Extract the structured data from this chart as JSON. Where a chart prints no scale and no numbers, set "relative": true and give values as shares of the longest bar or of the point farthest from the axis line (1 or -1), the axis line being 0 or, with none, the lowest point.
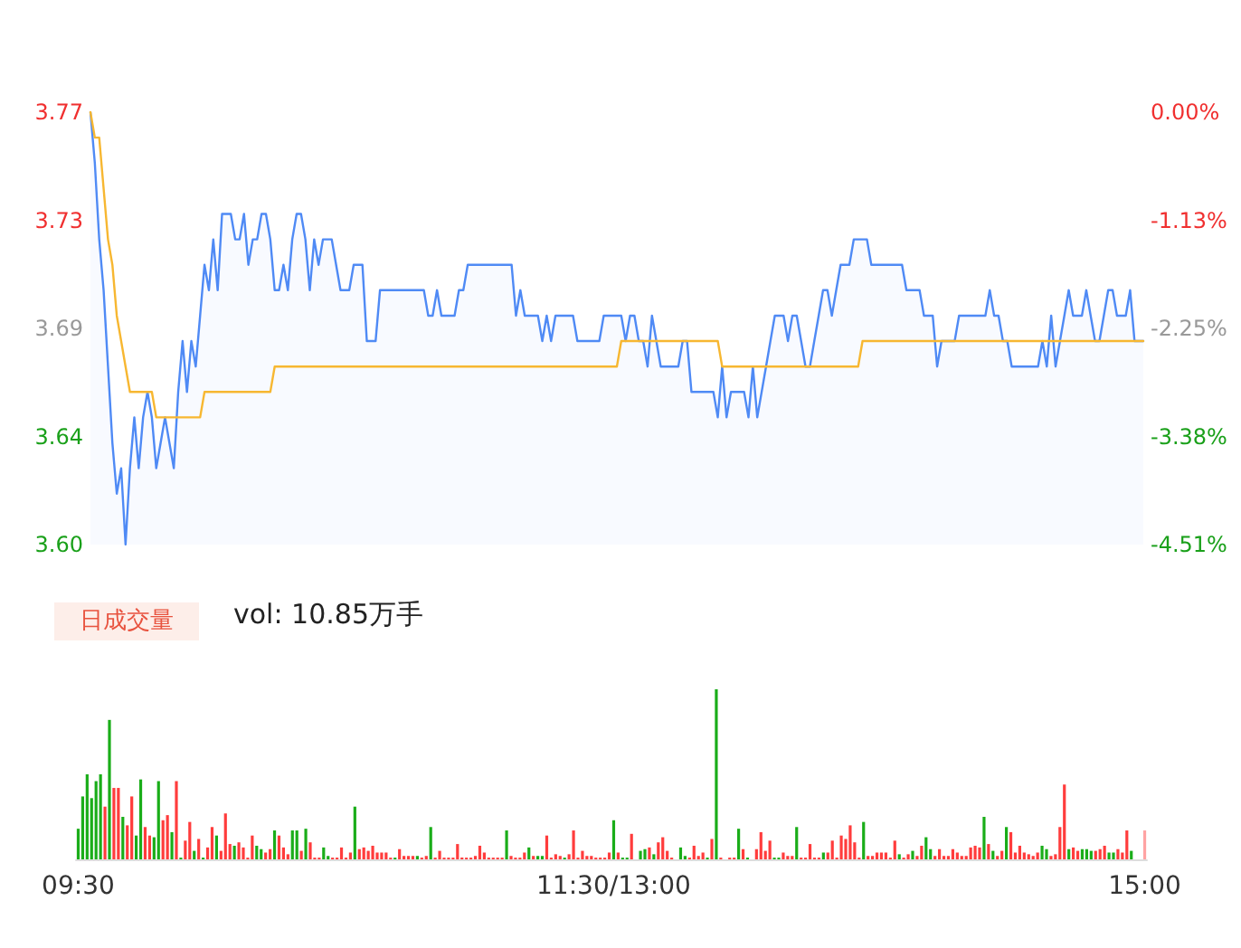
{
  "chart_data": [
    {
      "type": "line",
      "categories": [
        null,
        null,
        null,
        null,
        null,
        null,
        null,
        null,
        null,
        null,
        null,
        null,
        null,
        null,
        null,
        null,
        null,
        null,
        null,
        null,
        null,
        null,
        null,
        null,
        null,
        null,
        null,
        null,
        null,
        null,
        null,
        null,
        null,
        null,
        null,
        null,
        null,
        null,
        null,
        null,
        null,
        null,
        null,
        null,
        null,
        null,
        null,
        null,
        null,
        null,
        null,
        null,
        null,
        null,
        null,
        null,
        null,
        null,
        null,
        null,
        null,
        null,
        null,
        null,
        null,
        null,
        null,
        null,
        null,
        null,
        null,
        null,
        null,
        null,
        null,
        null,
        null,
        null,
        null,
        null,
        null,
        null,
        null,
        null,
        null,
        null,
        null,
        null,
        null,
        null,
        null,
        null,
        null,
        null,
        null,
        null,
        null,
        null,
        null,
        null,
        null,
        null,
        null,
        null,
        null,
        null,
        null,
        null,
        null,
        null,
        null,
        null,
        null,
        null,
        null,
        null,
        null,
        null,
        null,
        null,
        null,
        null,
        null,
        null,
        null,
        null,
        null,
        null,
        null,
        null,
        null,
        null,
        null,
        null,
        null,
        null,
        null,
        null,
        null,
        null,
        null,
        null,
        null,
        null,
        null,
        null,
        null,
        null,
        null,
        null,
        null,
        null,
        null,
        null,
        null,
        null,
        null,
        null,
        null,
        null,
        null,
        null,
        null,
        null,
        null,
        null,
        null,
        null,
        null,
        null,
        null,
        null,
        null,
        null,
        null,
        null,
        null,
        null,
        null,
        null,
        null,
        null,
        null,
        null,
        null,
        null,
        null,
        null,
        null,
        null,
        null,
        null,
        null,
        null,
        null,
        null,
        null,
        null,
        null,
        null,
        null,
        null,
        null,
        null,
        null,
        null,
        null,
        null,
        null,
        null,
        null,
        null,
        null,
        null,
        null,
        null,
        null,
        null,
        null,
        null,
        null,
        null,
        null,
        null,
        null,
        null,
        null,
        null,
        null,
        null,
        null,
        null,
        null,
        null,
        null,
        null,
        null,
        null,
        null,
        null,
        null
      ],
      "ylim": [
        3.6,
        3.77
      ],
      "yticks": [
        {
          "value": 3.6,
          "label": "3.60"
        },
        {
          "value": 3.6425,
          "label": "3.64"
        },
        {
          "value": 3.685,
          "label": "3.69"
        },
        {
          "value": 3.7275,
          "label": "3.73"
        },
        3.77
      ],
      "y2lim": [
        -4.51,
        0
      ],
      "y2ticks": [
        {
          "value": -4.51,
          "label": "-4.51%"
        },
        {
          "value": -3.3825,
          "label": "-3.38%"
        },
        {
          "value": -2.255,
          "label": "-2.25%"
        },
        {
          "value": -1.1275,
          "label": "-1.13%"
        },
        {
          "value": 0,
          "label": "0.00%"
        }
      ],
      "tick_labels": "y",
      "marker": "none",
      "line_style": "solid",
      "series": [
        {
          "type": "area",
          "color": "#4f8af5",
          "values": [
            3.77,
            3.75,
            3.72,
            3.7,
            3.67,
            3.64,
            3.62,
            3.63,
            3.6,
            3.63,
            3.65,
            3.63,
            3.65,
            3.66,
            3.65,
            3.63,
            3.64,
            3.65,
            3.64,
            3.63,
            3.66,
            3.68,
            3.66,
            3.68,
            3.67,
            3.69,
            3.71,
            3.7,
            3.72,
            3.7,
            3.73,
            3.73,
            3.73,
            3.72,
            3.72,
            3.73,
            3.71,
            3.72,
            3.72,
            3.73,
            3.73,
            3.72,
            3.7,
            3.7,
            3.71,
            3.7,
            3.72,
            3.73,
            3.73,
            3.72,
            3.7,
            3.72,
            3.71,
            3.72,
            3.72,
            3.72,
            3.71,
            3.7,
            3.7,
            3.7,
            3.71,
            3.71,
            3.71,
            3.68,
            3.68,
            3.68,
            3.7,
            3.7,
            3.7,
            3.7,
            3.7,
            3.7,
            3.7,
            3.7,
            3.7,
            3.7,
            3.7,
            3.69,
            3.69,
            3.7,
            3.69,
            3.69,
            3.69,
            3.69,
            3.7,
            3.7,
            3.71,
            3.71,
            3.71,
            3.71,
            3.71,
            3.71,
            3.71,
            3.71,
            3.71,
            3.71,
            3.71,
            3.69,
            3.7,
            3.69,
            3.69,
            3.69,
            3.69,
            3.68,
            3.69,
            3.68,
            3.69,
            3.69,
            3.69,
            3.69,
            3.69,
            3.68,
            3.68,
            3.68,
            3.68,
            3.68,
            3.68,
            3.69,
            3.69,
            3.69,
            3.69,
            3.69,
            3.68,
            3.69,
            3.69,
            3.68,
            3.68,
            3.67,
            3.69,
            3.68,
            3.67,
            3.67,
            3.67,
            3.67,
            3.67,
            3.68,
            3.68,
            3.66,
            3.66,
            3.66,
            3.66,
            3.66,
            3.66,
            3.65,
            3.67,
            3.65,
            3.66,
            3.66,
            3.66,
            3.66,
            3.65,
            3.67,
            3.65,
            3.66,
            3.67,
            3.68,
            3.69,
            3.69,
            3.69,
            3.68,
            3.69,
            3.69,
            3.68,
            3.67,
            3.67,
            3.68,
            3.69,
            3.7,
            3.7,
            3.69,
            3.7,
            3.71,
            3.71,
            3.71,
            3.72,
            3.72,
            3.72,
            3.72,
            3.71,
            3.71,
            3.71,
            3.71,
            3.71,
            3.71,
            3.71,
            3.71,
            3.7,
            3.7,
            3.7,
            3.7,
            3.69,
            3.69,
            3.69,
            3.67,
            3.68,
            3.68,
            3.68,
            3.68,
            3.69,
            3.69,
            3.69,
            3.69,
            3.69,
            3.69,
            3.69,
            3.7,
            3.69,
            3.69,
            3.68,
            3.68,
            3.67,
            3.67,
            3.67,
            3.67,
            3.67,
            3.67,
            3.67,
            3.68,
            3.67,
            3.69,
            3.67,
            3.68,
            3.69,
            3.7,
            3.69,
            3.69,
            3.69,
            3.7,
            3.69,
            3.68,
            3.68,
            3.69,
            3.7,
            3.7,
            3.69,
            3.69,
            3.69,
            3.7,
            3.68,
            3.68,
            3.68
          ]
        },
        {
          "type": "line",
          "color": "#f7b731",
          "values": [
            3.77,
            3.76,
            3.76,
            3.74,
            3.72,
            3.71,
            3.69,
            3.68,
            3.67,
            3.66,
            3.66,
            3.66,
            3.66,
            3.66,
            3.66,
            3.65,
            3.65,
            3.65,
            3.65,
            3.65,
            3.65,
            3.65,
            3.65,
            3.65,
            3.65,
            3.65,
            3.66,
            3.66,
            3.66,
            3.66,
            3.66,
            3.66,
            3.66,
            3.66,
            3.66,
            3.66,
            3.66,
            3.66,
            3.66,
            3.66,
            3.66,
            3.66,
            3.67,
            3.67,
            3.67,
            3.67,
            3.67,
            3.67,
            3.67,
            3.67,
            3.67,
            3.67,
            3.67,
            3.67,
            3.67,
            3.67,
            3.67,
            3.67,
            3.67,
            3.67,
            3.67,
            3.67,
            3.67,
            3.67,
            3.67,
            3.67,
            3.67,
            3.67,
            3.67,
            3.67,
            3.67,
            3.67,
            3.67,
            3.67,
            3.67,
            3.67,
            3.67,
            3.67,
            3.67,
            3.67,
            3.67,
            3.67,
            3.67,
            3.67,
            3.67,
            3.67,
            3.67,
            3.67,
            3.67,
            3.67,
            3.67,
            3.67,
            3.67,
            3.67,
            3.67,
            3.67,
            3.67,
            3.67,
            3.67,
            3.67,
            3.67,
            3.67,
            3.67,
            3.67,
            3.67,
            3.67,
            3.67,
            3.67,
            3.67,
            3.67,
            3.67,
            3.67,
            3.67,
            3.67,
            3.67,
            3.67,
            3.67,
            3.67,
            3.67,
            3.67,
            3.67,
            3.68,
            3.68,
            3.68,
            3.68,
            3.68,
            3.68,
            3.68,
            3.68,
            3.68,
            3.68,
            3.68,
            3.68,
            3.68,
            3.68,
            3.68,
            3.68,
            3.68,
            3.68,
            3.68,
            3.68,
            3.68,
            3.68,
            3.68,
            3.67,
            3.67,
            3.67,
            3.67,
            3.67,
            3.67,
            3.67,
            3.67,
            3.67,
            3.67,
            3.67,
            3.67,
            3.67,
            3.67,
            3.67,
            3.67,
            3.67,
            3.67,
            3.67,
            3.67,
            3.67,
            3.67,
            3.67,
            3.67,
            3.67,
            3.67,
            3.67,
            3.67,
            3.67,
            3.67,
            3.67,
            3.67,
            3.68,
            3.68,
            3.68,
            3.68,
            3.68,
            3.68,
            3.68,
            3.68,
            3.68,
            3.68,
            3.68,
            3.68,
            3.68,
            3.68,
            3.68,
            3.68,
            3.68,
            3.68,
            3.68,
            3.68,
            3.68,
            3.68,
            3.68,
            3.68,
            3.68,
            3.68,
            3.68,
            3.68,
            3.68,
            3.68,
            3.68,
            3.68,
            3.68,
            3.68,
            3.68,
            3.68,
            3.68,
            3.68,
            3.68,
            3.68,
            3.68,
            3.68,
            3.68,
            3.68,
            3.68,
            3.68,
            3.68,
            3.68,
            3.68,
            3.68,
            3.68,
            3.68,
            3.68,
            3.68,
            3.68,
            3.68,
            3.68,
            3.68,
            3.68,
            3.68,
            3.68,
            3.68,
            3.68,
            3.68,
            3.68
          ]
        }
      ]
    },
    {
      "type": "bar",
      "relative": true,
      "tick_labels": "x",
      "annotations": [
        "日成交量",
        "vol: 10.85万手"
      ],
      "categories": [
        "09:30",
        null,
        null,
        null,
        null,
        null,
        null,
        null,
        null,
        null,
        null,
        null,
        null,
        null,
        null,
        null,
        null,
        null,
        null,
        null,
        null,
        null,
        null,
        null,
        null,
        null,
        null,
        null,
        null,
        null,
        null,
        null,
        null,
        null,
        null,
        null,
        null,
        null,
        null,
        null,
        null,
        null,
        null,
        null,
        null,
        null,
        null,
        null,
        null,
        null,
        null,
        null,
        null,
        null,
        null,
        null,
        null,
        null,
        null,
        null,
        null,
        null,
        null,
        null,
        null,
        null,
        null,
        null,
        null,
        null,
        null,
        null,
        null,
        null,
        null,
        null,
        null,
        null,
        null,
        null,
        null,
        null,
        null,
        null,
        null,
        null,
        null,
        null,
        null,
        null,
        null,
        null,
        null,
        null,
        null,
        null,
        null,
        null,
        null,
        null,
        null,
        null,
        null,
        null,
        null,
        null,
        null,
        null,
        null,
        null,
        null,
        null,
        null,
        null,
        null,
        null,
        null,
        null,
        null,
        null,
        "11:30/13:00",
        null,
        null,
        null,
        null,
        null,
        null,
        null,
        null,
        null,
        null,
        null,
        null,
        null,
        null,
        null,
        null,
        null,
        null,
        null,
        null,
        null,
        null,
        null,
        null,
        null,
        null,
        null,
        null,
        null,
        null,
        null,
        null,
        null,
        null,
        null,
        null,
        null,
        null,
        null,
        null,
        null,
        null,
        null,
        null,
        null,
        null,
        null,
        null,
        null,
        null,
        null,
        null,
        null,
        null,
        null,
        null,
        null,
        null,
        null,
        null,
        null,
        null,
        null,
        null,
        null,
        null,
        null,
        null,
        null,
        null,
        null,
        null,
        null,
        null,
        null,
        null,
        null,
        null,
        null,
        null,
        null,
        null,
        null,
        null,
        null,
        null,
        null,
        null,
        null,
        null,
        null,
        null,
        null,
        null,
        null,
        null,
        null,
        null,
        null,
        null,
        null,
        null,
        null,
        null,
        null,
        null,
        null,
        null,
        null,
        null,
        null,
        null,
        null,
        null,
        null,
        null,
        null,
        null,
        "15:00"
      ],
      "values": [
        0.18,
        0.37,
        0.5,
        0.36,
        0.46,
        0.5,
        0.31,
        0.82,
        0.42,
        0.42,
        0.25,
        0.2,
        0.37,
        0.14,
        0.47,
        0.19,
        0.14,
        0.13,
        0.46,
        0.23,
        0.26,
        0.16,
        0.46,
        0.01,
        0.11,
        0.22,
        0.05,
        0.12,
        0.01,
        0.07,
        0.19,
        0.14,
        0.05,
        0.27,
        0.09,
        0.08,
        0.1,
        0.07,
        0.01,
        0.14,
        0.08,
        0.06,
        0.04,
        0.06,
        0.17,
        0.14,
        0.07,
        0.03,
        0.17,
        0.17,
        0.05,
        0.18,
        0.1,
        0.01,
        0.01,
        0.07,
        0.02,
        0.01,
        0.01,
        0.07,
        0.01,
        0.04,
        0.31,
        0.06,
        0.07,
        0.05,
        0.08,
        0.04,
        0.04,
        0.04,
        0.01,
        0.01,
        0.06,
        0.02,
        0.02,
        0.02,
        0.02,
        0.01,
        0.02,
        0.19,
        0.01,
        0.05,
        0.01,
        0.01,
        0.01,
        0.09,
        0.01,
        0.01,
        0.01,
        0.02,
        0.08,
        0.04,
        0.01,
        0.01,
        0.01,
        0.01,
        0.17,
        0.02,
        0.01,
        0.01,
        0.04,
        0.07,
        0.02,
        0.02,
        0.02,
        0.14,
        0.01,
        0.03,
        0.02,
        0.01,
        0.03,
        0.17,
        0.01,
        0.05,
        0.02,
        0.02,
        0.01,
        0.01,
        0.01,
        0.04,
        0.23,
        0.04,
        0.01,
        0.01,
        0.15,
        0,
        0.05,
        0.06,
        0.07,
        0.03,
        0.1,
        0.13,
        0.05,
        0.01,
        0,
        0.07,
        0.02,
        0.01,
        0.08,
        0.02,
        0.04,
        0.01,
        0.12,
        1,
        0.01,
        0,
        0.01,
        0.01,
        0.18,
        0.06,
        0.01,
        0,
        0.06,
        0.16,
        0.05,
        0.11,
        0.01,
        0.01,
        0.04,
        0.02,
        0.02,
        0.19,
        0.01,
        0.01,
        0.09,
        0.01,
        0.01,
        0.04,
        0.04,
        0.11,
        0.01,
        0.14,
        0.12,
        0.2,
        0.1,
        0.01,
        0.22,
        0.02,
        0.02,
        0.04,
        0.04,
        0.04,
        0.01,
        0.11,
        0.03,
        0.01,
        0.03,
        0.05,
        0.02,
        0.08,
        0.13,
        0.06,
        0.02,
        0.06,
        0.02,
        0.02,
        0.06,
        0.04,
        0.02,
        0.02,
        0.07,
        0.08,
        0.07,
        0.25,
        0.09,
        0.05,
        0.02,
        0.05,
        0.19,
        0.16,
        0.04,
        0.08,
        0.04,
        0.03,
        0.02,
        0.04,
        0.08,
        0.06,
        0.02,
        0.03,
        0.19,
        0.44,
        0.06,
        0.07,
        0.05,
        0.06,
        0.06,
        0.05,
        0.05,
        0.06,
        0.08,
        0.04,
        0.04,
        0.06,
        0.04,
        0.17,
        0.05,
        0,
        0,
        0.17
      ],
      "colors": [
        "#1aad19",
        "#1aad19",
        "#1aad19",
        "#1aad19",
        "#1aad19",
        "#1aad19",
        "#ff3c3c",
        "#1aad19",
        "#ff3c3c",
        "#ff3c3c",
        "#1aad19",
        "#ff3c3c",
        "#ff3c3c",
        "#1aad19",
        "#1aad19",
        "#ff3c3c",
        "#ff3c3c",
        "#1aad19",
        "#1aad19",
        "#ff3c3c",
        "#ff3c3c",
        "#1aad19",
        "#ff3c3c",
        "#1aad19",
        "#ff3c3c",
        "#ff3c3c",
        "#1aad19",
        "#ff3c3c",
        "#1aad19",
        "#ff3c3c",
        "#ff3c3c",
        "#1aad19",
        "#ff3c3c",
        "#ff3c3c",
        "#ff3c3c",
        "#1aad19",
        "#ff3c3c",
        "#ff3c3c",
        "#ff3c3c",
        "#ff3c3c",
        "#1aad19",
        "#1aad19",
        "#ff3c3c",
        "#ff3c3c",
        "#1aad19",
        "#ff3c3c",
        "#ff3c3c",
        "#ff3c3c",
        "#1aad19",
        "#1aad19",
        "#ff3c3c",
        "#1aad19",
        "#ff3c3c",
        "#ff3c3c",
        "#ff3c3c",
        "#1aad19",
        "#1aad19",
        "#ff3c3c",
        "#ff3c3c",
        "#ff3c3c",
        "#ff3c3c",
        "#ff3c3c",
        "#1aad19",
        "#ff3c3c",
        "#ff3c3c",
        "#ff3c3c",
        "#ff3c3c",
        "#ff3c3c",
        "#ff3c3c",
        "#ff3c3c",
        "#ff3c3c",
        "#1aad19",
        "#ff3c3c",
        "#ff3c3c",
        "#ff3c3c",
        "#ff3c3c",
        "#1aad19",
        "#ff3c3c",
        "#ff3c3c",
        "#1aad19",
        "#ff3c3c",
        "#ff3c3c",
        "#ff3c3c",
        "#ff3c3c",
        "#ff3c3c",
        "#ff3c3c",
        "#ff3c3c",
        "#ff3c3c",
        "#ff3c3c",
        "#ff3c3c",
        "#ff3c3c",
        "#ff3c3c",
        "#ff3c3c",
        "#ff3c3c",
        "#ff3c3c",
        "#ff3c3c",
        "#1aad19",
        "#ff3c3c",
        "#ff3c3c",
        "#ff3c3c",
        "#ff3c3c",
        "#1aad19",
        "#ff3c3c",
        "#1aad19",
        "#1aad19",
        "#ff3c3c",
        "#ff3c3c",
        "#ff3c3c",
        "#ff3c3c",
        "#1aad19",
        "#ff3c3c",
        "#ff3c3c",
        "#ff3c3c",
        "#ff3c3c",
        "#ff3c3c",
        "#ff3c3c",
        "#ff3c3c",
        "#ff3c3c",
        "#ff3c3c",
        "#ff3c3c",
        "#1aad19",
        "#ff3c3c",
        "#1aad19",
        "#1aad19",
        "#ff3c3c",
        "#ff3c3c",
        "#1aad19",
        "#1aad19",
        "#ff3c3c",
        "#1aad19",
        "#ff3c3c",
        "#ff3c3c",
        "#ff3c3c",
        "#ff3c3c",
        "#ff3c3c",
        "#1aad19",
        "#1aad19",
        "#ff3c3c",
        "#ff3c3c",
        "#ff3c3c",
        "#ff3c3c",
        "#1aad19",
        "#ff3c3c",
        "#1aad19",
        "#ff3c3c",
        "#ff3c3c",
        "#ff3c3c",
        "#ff3c3c",
        "#1aad19",
        "#ff3c3c",
        "#1aad19",
        "#ff3c3c",
        "#ff3c3c",
        "#ff3c3c",
        "#ff3c3c",
        "#ff3c3c",
        "#1aad19",
        "#1aad19",
        "#ff3c3c",
        "#ff3c3c",
        "#ff3c3c",
        "#1aad19",
        "#ff3c3c",
        "#ff3c3c",
        "#ff3c3c",
        "#ff3c3c",
        "#ff3c3c",
        "#1aad19",
        "#ff3c3c",
        "#ff3c3c",
        "#ff3c3c",
        "#ff3c3c",
        "#ff3c3c",
        "#ff3c3c",
        "#ff3c3c",
        "#ff3c3c",
        "#1aad19",
        "#ff3c3c",
        "#ff3c3c",
        "#ff3c3c",
        "#ff3c3c",
        "#ff3c3c",
        "#ff3c3c",
        "#ff3c3c",
        "#1aad19",
        "#ff3c3c",
        "#ff3c3c",
        "#1aad19",
        "#ff3c3c",
        "#ff3c3c",
        "#1aad19",
        "#1aad19",
        "#ff3c3c",
        "#ff3c3c",
        "#ff3c3c",
        "#ff3c3c",
        "#ff3c3c",
        "#ff3c3c",
        "#ff3c3c",
        "#ff3c3c",
        "#ff3c3c",
        "#ff3c3c",
        "#ff3c3c",
        "#1aad19",
        "#ff3c3c",
        "#1aad19",
        "#ff3c3c",
        "#ff3c3c",
        "#1aad19",
        "#ff3c3c",
        "#ff3c3c",
        "#ff3c3c",
        "#ff3c3c",
        "#ff3c3c",
        "#ff3c3c",
        "#ff3c3c",
        "#1aad19",
        "#1aad19",
        "#ff3c3c",
        "#ff3c3c",
        "#ff3c3c",
        "#ff3c3c",
        "#1aad19",
        "#ff3c3c",
        "#ff3c3c",
        "#1aad19",
        "#1aad19",
        "#1aad19",
        "#ff3c3c",
        "#ff3c3c",
        "#ff3c3c",
        "#1aad19",
        "#1aad19",
        "#ff3c3c",
        "#ff3c3c",
        "#ff3c3c",
        "#1aad19",
        "#ff3c3c",
        "#ff3c3c",
        "#ffa3a3"
      ]
    }
  ]
}
